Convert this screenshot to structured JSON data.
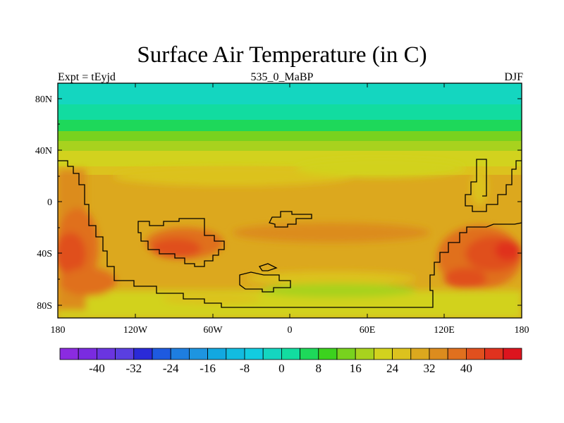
{
  "title": "Surface Air Temperature (in C)",
  "subtitle_left": "Expt = tEyjd",
  "subtitle_center": "535_0_MaBP",
  "subtitle_right": "DJF",
  "y_ticks": [
    "80N",
    "40N",
    "0",
    "40S",
    "80S"
  ],
  "x_ticks": [
    "180",
    "120W",
    "60W",
    "0",
    "60E",
    "120E",
    "180"
  ],
  "colorbar": {
    "labels": [
      "-40",
      "-32",
      "-24",
      "-16",
      "-8",
      "0",
      "8",
      "16",
      "24",
      "32",
      "40"
    ],
    "colors": [
      "#8b2be0",
      "#7a2be0",
      "#6a35e0",
      "#5a3fe0",
      "#2a2ad8",
      "#1e5ae0",
      "#1e7ee0",
      "#1e95e0",
      "#12a8e0",
      "#12bce0",
      "#12cce0",
      "#14d6c0",
      "#12dca0",
      "#1ed85a",
      "#3cd21e",
      "#78d21e",
      "#a8d21e",
      "#d2d21e",
      "#dcc21e",
      "#dca81e",
      "#dc8c1e",
      "#e0701e",
      "#e0501e",
      "#e0321e",
      "#dc141e"
    ]
  },
  "map": {
    "projection": "cylindrical-equidistant",
    "lon_range": [
      -180,
      180
    ],
    "lat_range": [
      -90,
      90
    ]
  }
}
